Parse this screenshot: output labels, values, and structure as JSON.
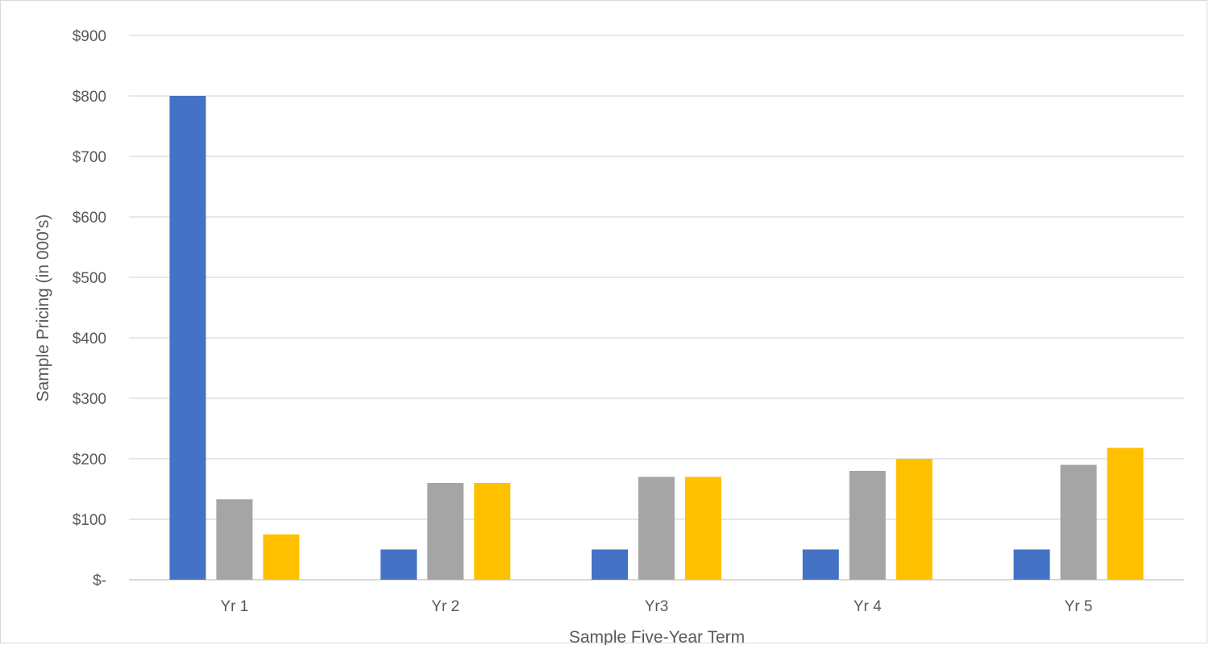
{
  "chart_data": {
    "type": "bar",
    "title": "",
    "xlabel": "Sample Five-Year Term",
    "ylabel": "Sample Pricing  (in 000's)",
    "categories": [
      "Yr 1",
      "Yr 2",
      "Yr3",
      "Yr 4",
      "Yr 5"
    ],
    "series": [
      {
        "color": "#4472c4",
        "values": [
          800,
          50,
          50,
          50,
          50
        ]
      },
      {
        "color": "#a5a5a5",
        "values": [
          133,
          160,
          170,
          180,
          190
        ]
      },
      {
        "color": "#ffc000",
        "values": [
          75,
          160,
          170,
          200,
          218
        ]
      }
    ],
    "ylim": [
      0,
      900
    ],
    "ytick_values": [
      0,
      100,
      200,
      300,
      400,
      500,
      600,
      700,
      800,
      900
    ],
    "ytick_labels": [
      "$-",
      "$100",
      "$200",
      "$300",
      "$400",
      "$500",
      "$600",
      "$700",
      "$800",
      "$900"
    ],
    "grid": true,
    "legend": "none"
  }
}
